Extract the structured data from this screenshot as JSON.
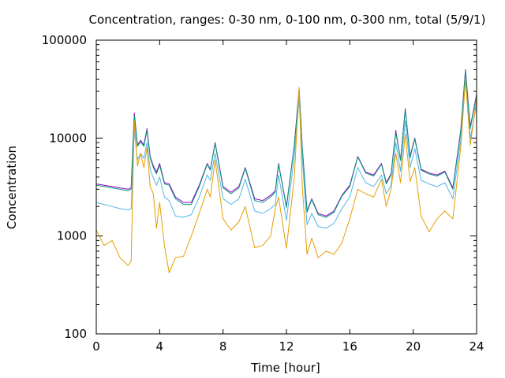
{
  "chart_data": {
    "type": "line",
    "title": "Concentration, ranges: 0-30 nm, 0-100 nm, 0-300 nm, total (5/9/1)",
    "xlabel": "Time [hour]",
    "ylabel": "Concentration",
    "xlim": [
      0,
      24
    ],
    "ylim": [
      100,
      100000
    ],
    "yscale": "log",
    "grid": false,
    "x_ticks": [
      0,
      4,
      8,
      12,
      16,
      20,
      24
    ],
    "x_tick_labels": [
      "0",
      "4",
      "8",
      "12",
      "16",
      "20",
      "24"
    ],
    "y_ticks": [
      100,
      1000,
      10000,
      100000
    ],
    "y_tick_labels": [
      "100",
      "1000",
      "10000",
      "100000"
    ],
    "x": [
      0,
      0.5,
      1,
      1.5,
      2,
      2.2,
      2.4,
      2.6,
      2.8,
      3.0,
      3.2,
      3.4,
      3.6,
      3.8,
      4.0,
      4.3,
      4.6,
      5.0,
      5.5,
      6.0,
      6.5,
      7.0,
      7.2,
      7.5,
      8.0,
      8.5,
      9.0,
      9.4,
      10.0,
      10.5,
      11.0,
      11.3,
      11.5,
      12.0,
      12.5,
      12.8,
      13.0,
      13.3,
      13.6,
      14.0,
      14.5,
      15.0,
      15.5,
      16.0,
      16.5,
      17.0,
      17.5,
      18.0,
      18.3,
      18.6,
      18.9,
      19.2,
      19.5,
      19.8,
      20.1,
      20.5,
      21.0,
      21.5,
      22.0,
      22.5,
      23.0,
      23.3,
      23.6,
      24.0
    ],
    "series": [
      {
        "color": "#9400d3",
        "values": [
          3400,
          3300,
          3200,
          3100,
          3000,
          3100,
          18000,
          8500,
          9500,
          8500,
          12500,
          6500,
          5200,
          4500,
          5500,
          3500,
          3400,
          2500,
          2200,
          2200,
          3300,
          5500,
          4800,
          9000,
          3200,
          2800,
          3200,
          5000,
          2400,
          2300,
          2600,
          2900,
          5500,
          2000,
          8500,
          32000,
          8000,
          1800,
          2400,
          1700,
          1600,
          1800,
          2600,
          3300,
          6500,
          4500,
          4200,
          5500,
          3500,
          4300,
          12000,
          6000,
          20000,
          6500,
          10000,
          4800,
          4400,
          4200,
          4600,
          3100,
          12000,
          50000,
          13000,
          28000
        ]
      },
      {
        "color": "#009e73",
        "values": [
          3300,
          3200,
          3100,
          3000,
          2900,
          3000,
          17000,
          8200,
          9200,
          8200,
          12000,
          6300,
          5000,
          4300,
          5300,
          3400,
          3300,
          2400,
          2100,
          2100,
          3200,
          5400,
          4700,
          8800,
          3100,
          2700,
          3100,
          4900,
          2300,
          2200,
          2500,
          2800,
          5400,
          1950,
          8300,
          31000,
          7800,
          1750,
          2350,
          1650,
          1550,
          1750,
          2550,
          3200,
          6400,
          4400,
          4100,
          5400,
          3400,
          4200,
          11500,
          5900,
          19500,
          6300,
          9800,
          4700,
          4300,
          4100,
          4500,
          3000,
          11500,
          48000,
          12500,
          27000
        ]
      },
      {
        "color": "#56b4e9",
        "values": [
          2200,
          2100,
          2000,
          1900,
          1850,
          1900,
          12000,
          6000,
          7000,
          6200,
          9000,
          4800,
          3900,
          3300,
          4000,
          2500,
          2300,
          1600,
          1550,
          1650,
          2500,
          4200,
          3700,
          7000,
          2400,
          2100,
          2400,
          3800,
          1800,
          1700,
          1900,
          2100,
          4200,
          1450,
          6500,
          25000,
          6200,
          1300,
          1700,
          1250,
          1200,
          1350,
          1900,
          2500,
          5000,
          3500,
          3200,
          4200,
          2700,
          3300,
          9000,
          4600,
          15000,
          5000,
          7800,
          3700,
          3400,
          3200,
          3500,
          2400,
          9500,
          40000,
          10000,
          22000
        ]
      },
      {
        "color": "#e69f00",
        "values": [
          1150,
          800,
          900,
          600,
          500,
          550,
          15000,
          5200,
          7000,
          5000,
          8000,
          3200,
          2700,
          1200,
          2200,
          800,
          420,
          600,
          620,
          1000,
          1700,
          3000,
          2500,
          6000,
          1500,
          1150,
          1400,
          2000,
          760,
          800,
          1000,
          1900,
          2500,
          750,
          4000,
          33000,
          3200,
          650,
          950,
          600,
          700,
          650,
          850,
          1500,
          3000,
          2700,
          2500,
          3800,
          2000,
          3000,
          7000,
          3500,
          11000,
          3600,
          5000,
          1600,
          1100,
          1500,
          1800,
          1500,
          8000,
          40000,
          8500,
          25000
        ]
      }
    ]
  }
}
